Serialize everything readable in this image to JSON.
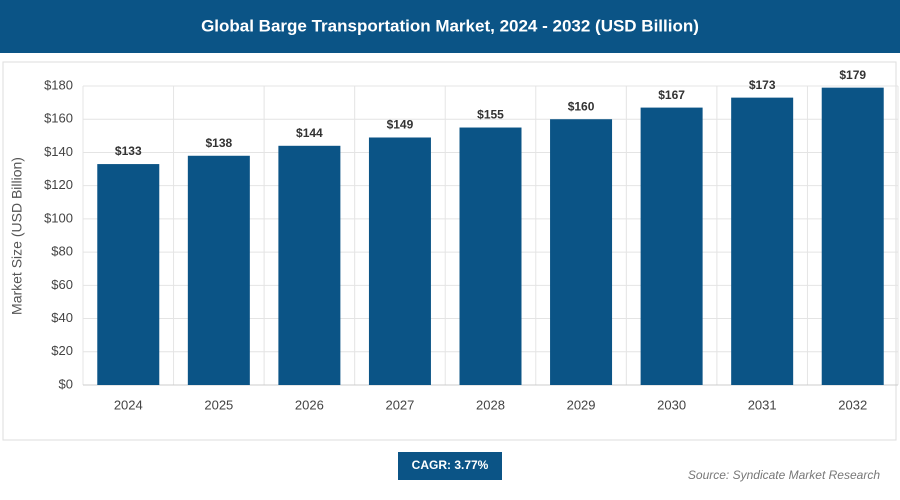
{
  "chart_data": {
    "type": "bar",
    "title": "Global Barge Transportation Market, 2024 - 2032 (USD Billion)",
    "y_axis_label": "Market Size (USD Billion)",
    "categories": [
      "2024",
      "2025",
      "2026",
      "2027",
      "2028",
      "2029",
      "2030",
      "2031",
      "2032"
    ],
    "values": [
      133,
      138,
      144,
      149,
      155,
      160,
      167,
      173,
      179
    ],
    "value_labels": [
      "$133",
      "$138",
      "$144",
      "$149",
      "$155",
      "$160",
      "$167",
      "$173",
      "$179"
    ],
    "color": "#0b5486",
    "ylim": [
      0,
      180
    ],
    "yticks": [
      {
        "value": 0,
        "label": "$0"
      },
      {
        "value": 20,
        "label": "$20"
      },
      {
        "value": 40,
        "label": "$40"
      },
      {
        "value": 60,
        "label": "$60"
      },
      {
        "value": 80,
        "label": "$80"
      },
      {
        "value": 100,
        "label": "$100"
      },
      {
        "value": 120,
        "label": "$120"
      },
      {
        "value": 140,
        "label": "$140"
      },
      {
        "value": 160,
        "label": "$160"
      },
      {
        "value": 180,
        "label": "$180"
      }
    ],
    "grid": true,
    "cagr": "CAGR: 3.77%",
    "source": "Source: Syndicate Market Research"
  }
}
